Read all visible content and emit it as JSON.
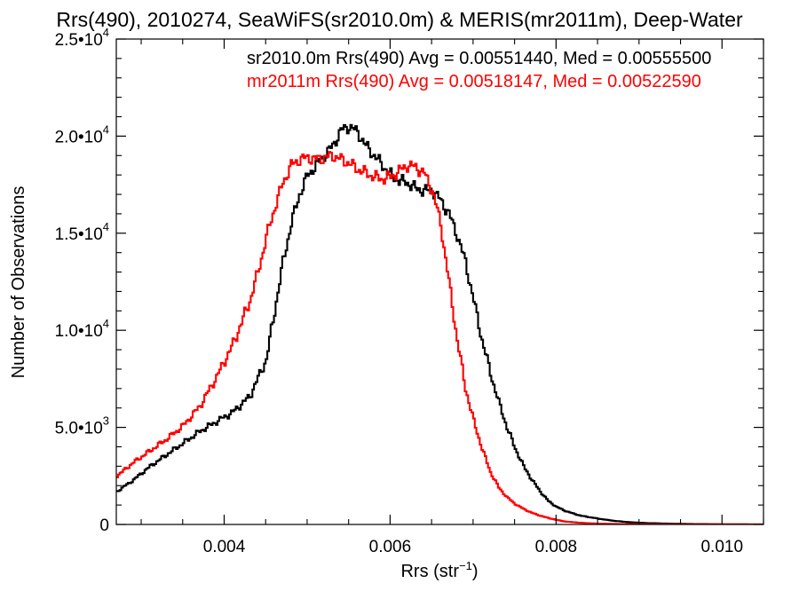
{
  "chart_data": {
    "type": "line",
    "title": "Rrs(490), 2010274, SeaWiFS(sr2010.0m) & MERIS(mr2011m), Deep-Water",
    "xlabel": "Rrs (str",
    "xlabel_sup": "−1",
    "xlabel_close": ")",
    "ylabel": "Number of Observations",
    "xlim": [
      0.0027,
      0.0105
    ],
    "ylim": [
      0,
      25000
    ],
    "grid": false,
    "step": true,
    "x_ticks": [
      {
        "value": 0.004,
        "label": "0.004"
      },
      {
        "value": 0.006,
        "label": "0.006"
      },
      {
        "value": 0.008,
        "label": "0.008"
      },
      {
        "value": 0.01,
        "label": "0.010"
      }
    ],
    "y_ticks": [
      {
        "value": 0,
        "base": "0",
        "exp": ""
      },
      {
        "value": 5000,
        "base": "5.0•10",
        "exp": "3"
      },
      {
        "value": 10000,
        "base": "1.0•10",
        "exp": "4"
      },
      {
        "value": 15000,
        "base": "1.5•10",
        "exp": "4"
      },
      {
        "value": 20000,
        "base": "2.0•10",
        "exp": "4"
      },
      {
        "value": 25000,
        "base": "2.5•10",
        "exp": "4"
      }
    ],
    "annotations": [
      {
        "text": "sr2010.0m Rrs(490) Avg = 0.00551440, Med = 0.00555500",
        "color": "#000000"
      },
      {
        "text": "mr2011m Rrs(490) Avg = 0.00518147, Med = 0.00522590",
        "color": "#ff0000"
      }
    ],
    "series": [
      {
        "name": "sr2010.0m",
        "color": "#000000",
        "points": [
          [
            0.0027,
            1700
          ],
          [
            0.0029,
            2300
          ],
          [
            0.0031,
            3000
          ],
          [
            0.0033,
            3600
          ],
          [
            0.0035,
            4200
          ],
          [
            0.0037,
            4800
          ],
          [
            0.0039,
            5300
          ],
          [
            0.0041,
            5800
          ],
          [
            0.0043,
            6600
          ],
          [
            0.0045,
            8500
          ],
          [
            0.0046,
            11000
          ],
          [
            0.0047,
            13500
          ],
          [
            0.0048,
            15500
          ],
          [
            0.0049,
            17000
          ],
          [
            0.005,
            18000
          ],
          [
            0.0051,
            18500
          ],
          [
            0.0052,
            19000
          ],
          [
            0.0053,
            19500
          ],
          [
            0.0054,
            20300
          ],
          [
            0.0055,
            20500
          ],
          [
            0.0056,
            20200
          ],
          [
            0.0057,
            19500
          ],
          [
            0.0058,
            19000
          ],
          [
            0.0059,
            18500
          ],
          [
            0.006,
            18000
          ],
          [
            0.0061,
            17700
          ],
          [
            0.0062,
            17600
          ],
          [
            0.0063,
            17300
          ],
          [
            0.0064,
            17200
          ],
          [
            0.0065,
            17200
          ],
          [
            0.0066,
            16700
          ],
          [
            0.0067,
            16000
          ],
          [
            0.0068,
            14900
          ],
          [
            0.0069,
            13500
          ],
          [
            0.007,
            11500
          ],
          [
            0.0071,
            9500
          ],
          [
            0.0072,
            7800
          ],
          [
            0.0073,
            6300
          ],
          [
            0.0074,
            5000
          ],
          [
            0.0075,
            3900
          ],
          [
            0.0076,
            3000
          ],
          [
            0.0077,
            2300
          ],
          [
            0.0078,
            1700
          ],
          [
            0.0079,
            1200
          ],
          [
            0.008,
            900
          ],
          [
            0.0081,
            700
          ],
          [
            0.0082,
            560
          ],
          [
            0.0083,
            440
          ],
          [
            0.0085,
            300
          ],
          [
            0.0087,
            180
          ],
          [
            0.0089,
            110
          ],
          [
            0.0091,
            70
          ],
          [
            0.0094,
            40
          ],
          [
            0.0097,
            20
          ],
          [
            0.01,
            10
          ],
          [
            0.0105,
            5
          ]
        ]
      },
      {
        "name": "mr2011m",
        "color": "#ff0000",
        "points": [
          [
            0.0027,
            2500
          ],
          [
            0.0029,
            3200
          ],
          [
            0.0031,
            3800
          ],
          [
            0.0033,
            4400
          ],
          [
            0.0035,
            5100
          ],
          [
            0.0037,
            6100
          ],
          [
            0.0039,
            7600
          ],
          [
            0.0041,
            9300
          ],
          [
            0.0043,
            11500
          ],
          [
            0.0044,
            13000
          ],
          [
            0.0045,
            14800
          ],
          [
            0.0046,
            16300
          ],
          [
            0.0047,
            17600
          ],
          [
            0.0048,
            18500
          ],
          [
            0.0049,
            18800
          ],
          [
            0.005,
            18900
          ],
          [
            0.0051,
            18800
          ],
          [
            0.0052,
            18900
          ],
          [
            0.0053,
            19000
          ],
          [
            0.0054,
            18800
          ],
          [
            0.0055,
            18600
          ],
          [
            0.0056,
            18300
          ],
          [
            0.0057,
            18100
          ],
          [
            0.0058,
            17900
          ],
          [
            0.0059,
            17800
          ],
          [
            0.006,
            17900
          ],
          [
            0.0061,
            18200
          ],
          [
            0.0062,
            18500
          ],
          [
            0.0063,
            18400
          ],
          [
            0.0064,
            18100
          ],
          [
            0.0065,
            17200
          ],
          [
            0.0066,
            15500
          ],
          [
            0.0067,
            12500
          ],
          [
            0.0068,
            9500
          ],
          [
            0.0069,
            7000
          ],
          [
            0.007,
            5300
          ],
          [
            0.0071,
            3900
          ],
          [
            0.0072,
            2700
          ],
          [
            0.0073,
            1900
          ],
          [
            0.0074,
            1400
          ],
          [
            0.0075,
            1050
          ],
          [
            0.0076,
            800
          ],
          [
            0.0077,
            600
          ],
          [
            0.0078,
            450
          ],
          [
            0.0079,
            330
          ],
          [
            0.008,
            230
          ],
          [
            0.0081,
            150
          ],
          [
            0.0083,
            80
          ],
          [
            0.0085,
            40
          ],
          [
            0.0088,
            20
          ],
          [
            0.0092,
            8
          ],
          [
            0.0105,
            2
          ]
        ]
      }
    ]
  }
}
